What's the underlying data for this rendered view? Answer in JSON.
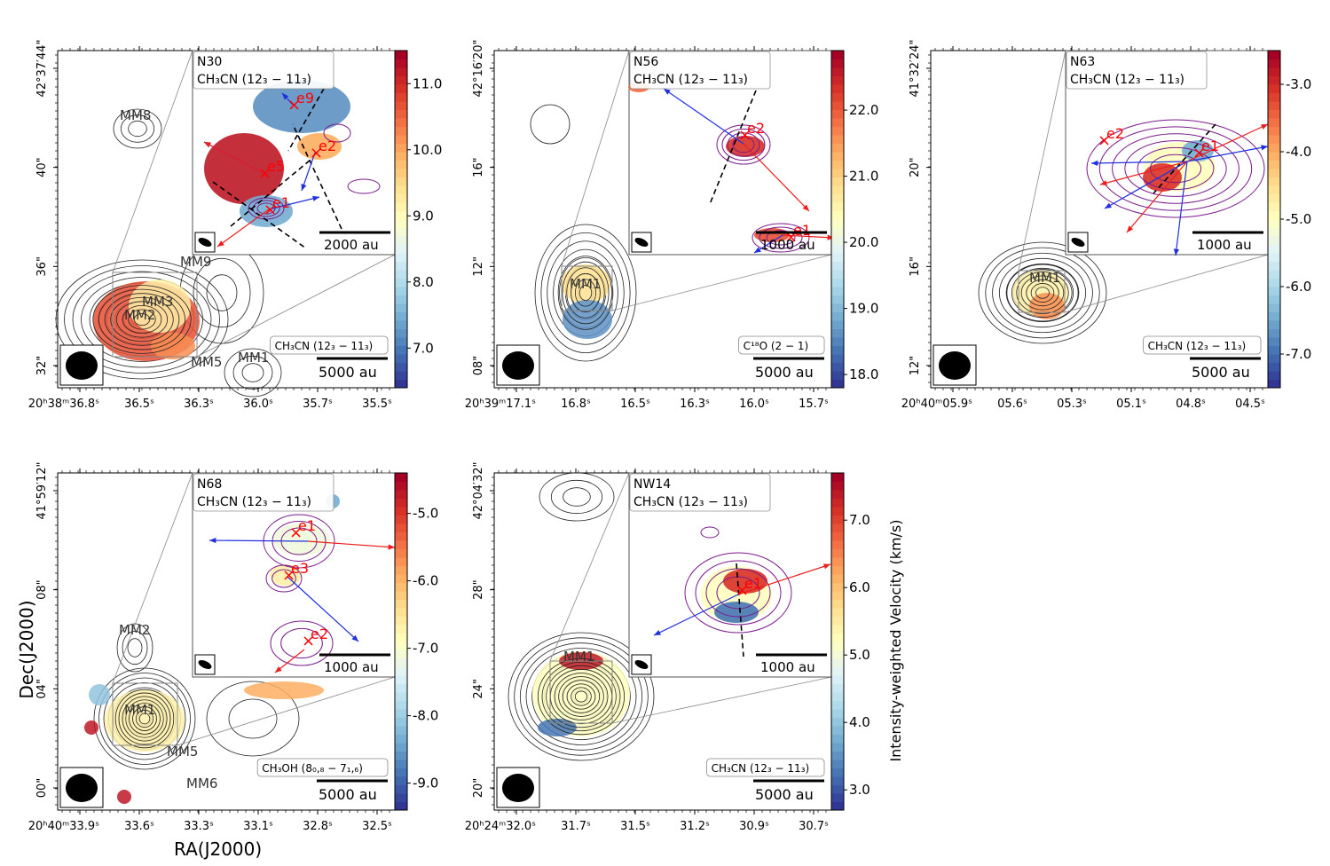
{
  "figure": {
    "xlabel": "RA(J2000)",
    "ylabel": "Dec(J2000)",
    "colorbar_label": "Intensity-weighted Velocity (km/s)"
  },
  "colors": {
    "contour": "#222222",
    "inner_contour": "#7b1a8c",
    "blue_arrow": "#1f2fe0",
    "red_arrow": "#ee1c1c",
    "outflow_axis": "#000000",
    "peak_marker": "#ff0000",
    "colormap": [
      "#313695",
      "#4575b4",
      "#74add1",
      "#abd9e9",
      "#e0f3f8",
      "#ffffbf",
      "#fee090",
      "#fdae61",
      "#f46d43",
      "#d73027",
      "#a50026"
    ]
  },
  "panels": [
    {
      "id": "N30",
      "inset_title": "N30",
      "inset_line": "CH₃CN (12₃ − 11₃)",
      "main_line": "CH₃CN (12₃ − 11₃)",
      "scalebar_main": "5000 au",
      "scalebar_inset": "2000 au",
      "x_ticks": [
        "20ʰ38ᵐ36.8ˢ",
        "36.5ˢ",
        "36.3ˢ",
        "36.0ˢ",
        "35.7ˢ",
        "35.5ˢ"
      ],
      "y_ticks": [
        "32\"",
        "36\"",
        "40\"",
        "42°37′44\""
      ],
      "cores": [
        "MM8",
        "MM9",
        "MM3",
        "MM2",
        "MM5",
        "MM1"
      ],
      "inset_peaks": [
        "e9",
        "e2",
        "e5",
        "e1"
      ],
      "colorbar_ticks": [
        "7.0",
        "8.0",
        "9.0",
        "10.0",
        "11.0"
      ],
      "vmin": 6.4,
      "vmax": 11.5
    },
    {
      "id": "N56",
      "inset_title": "N56",
      "inset_line": "CH₃CN (12₃ − 11₃)",
      "main_line": "C¹⁸O (2 − 1)",
      "scalebar_main": "5000 au",
      "scalebar_inset": "1000 au",
      "x_ticks": [
        "20ʰ39ᵐ17.1ˢ",
        "16.8ˢ",
        "16.5ˢ",
        "16.3ˢ",
        "16.0ˢ",
        "15.7ˢ"
      ],
      "y_ticks": [
        "08\"",
        "12\"",
        "16\"",
        "42°16′20\""
      ],
      "cores": [
        "MM1"
      ],
      "inset_peaks": [
        "e2",
        "e1"
      ],
      "colorbar_ticks": [
        "18.0",
        "19.0",
        "20.0",
        "21.0",
        "22.0"
      ],
      "vmin": 17.8,
      "vmax": 22.9
    },
    {
      "id": "N63",
      "inset_title": "N63",
      "inset_line": "CH₃CN (12₃ − 11₃)",
      "main_line": "CH₃CN (12₃ − 11₃)",
      "scalebar_main": "5000 au",
      "scalebar_inset": "1000 au",
      "x_ticks": [
        "20ʰ40ᵐ05.9ˢ",
        "05.6ˢ",
        "05.3ˢ",
        "05.1ˢ",
        "04.8ˢ",
        "04.5ˢ"
      ],
      "y_ticks": [
        "12\"",
        "16\"",
        "20\"",
        "41°32′24\""
      ],
      "cores": [
        "MM1"
      ],
      "inset_peaks": [
        "e2",
        "e1"
      ],
      "colorbar_ticks": [
        "-7.0",
        "-6.0",
        "-5.0",
        "-4.0",
        "-3.0"
      ],
      "vmin": -7.5,
      "vmax": -2.5
    },
    {
      "id": "N68",
      "inset_title": "N68",
      "inset_line": "CH₃CN (12₃ − 11₃)",
      "main_line": "CH₃OH (8₀,₈ − 7₁,₆)",
      "scalebar_main": "5000 au",
      "scalebar_inset": "1000 au",
      "x_ticks": [
        "20ʰ40ᵐ33.9ˢ",
        "33.6ˢ",
        "33.3ˢ",
        "33.1ˢ",
        "32.8ˢ",
        "32.5ˢ"
      ],
      "y_ticks": [
        "00\"",
        "04\"",
        "08\"",
        "41°59′12\""
      ],
      "cores": [
        "MM2",
        "MM1",
        "MM5",
        "MM6"
      ],
      "inset_peaks": [
        "e1",
        "e3",
        "e2"
      ],
      "colorbar_ticks": [
        "-9.0",
        "-8.0",
        "-7.0",
        "-6.0",
        "-5.0"
      ],
      "vmin": -9.4,
      "vmax": -4.4
    },
    {
      "id": "NW14",
      "inset_title": "NW14",
      "inset_line": "CH₃CN (12₃ − 11₃)",
      "main_line": "CH₃CN (12₃ − 11₃)",
      "scalebar_main": "5000 au",
      "scalebar_inset": "1000 au",
      "x_ticks": [
        "20ʰ24ᵐ32.0ˢ",
        "31.7ˢ",
        "31.5ˢ",
        "31.2ˢ",
        "30.9ˢ",
        "30.7ˢ"
      ],
      "y_ticks": [
        "20\"",
        "24\"",
        "28\"",
        "42°04′32\""
      ],
      "cores": [
        "MM1"
      ],
      "inset_peaks": [
        "e1"
      ],
      "colorbar_ticks": [
        "3.0",
        "4.0",
        "5.0",
        "6.0",
        "7.0"
      ],
      "vmin": 2.7,
      "vmax": 7.7
    }
  ]
}
